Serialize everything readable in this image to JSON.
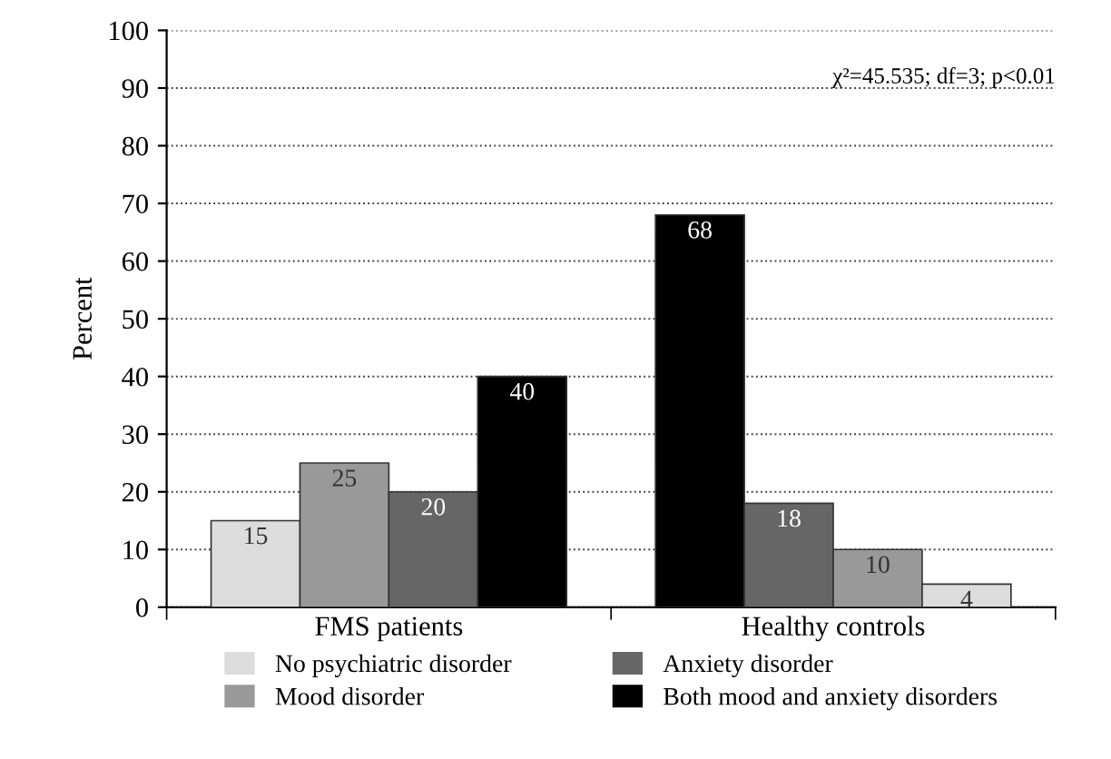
{
  "chart_data": {
    "type": "bar",
    "ylabel": "Percent",
    "categories": [
      "FMS patients",
      "Healthy controls"
    ],
    "series": [
      {
        "name": "No psychiatric disorder",
        "color": "#dcdcdc",
        "colors": [
          "#dcdcdc",
          "#000000"
        ],
        "values": [
          15,
          68
        ]
      },
      {
        "name": "Mood disorder",
        "color": "#999999",
        "colors": [
          "#999999",
          "#666666"
        ],
        "values": [
          25,
          18
        ]
      },
      {
        "name": "Anxiety disorder",
        "color": "#666666",
        "colors": [
          "#666666",
          "#999999"
        ],
        "values": [
          20,
          10
        ]
      },
      {
        "name": "Both mood and anxiety disorders",
        "color": "#000000",
        "colors": [
          "#000000",
          "#dcdcdc"
        ],
        "values": [
          40,
          4
        ]
      }
    ],
    "ylim": [
      0,
      100
    ],
    "yticks": [
      0,
      10,
      20,
      30,
      40,
      50,
      60,
      70,
      80,
      90,
      100
    ],
    "grid": "y",
    "legend": "bottom",
    "data_labels": true,
    "annotations": [
      "χ²=45.535; df=3; p<0.01"
    ]
  }
}
